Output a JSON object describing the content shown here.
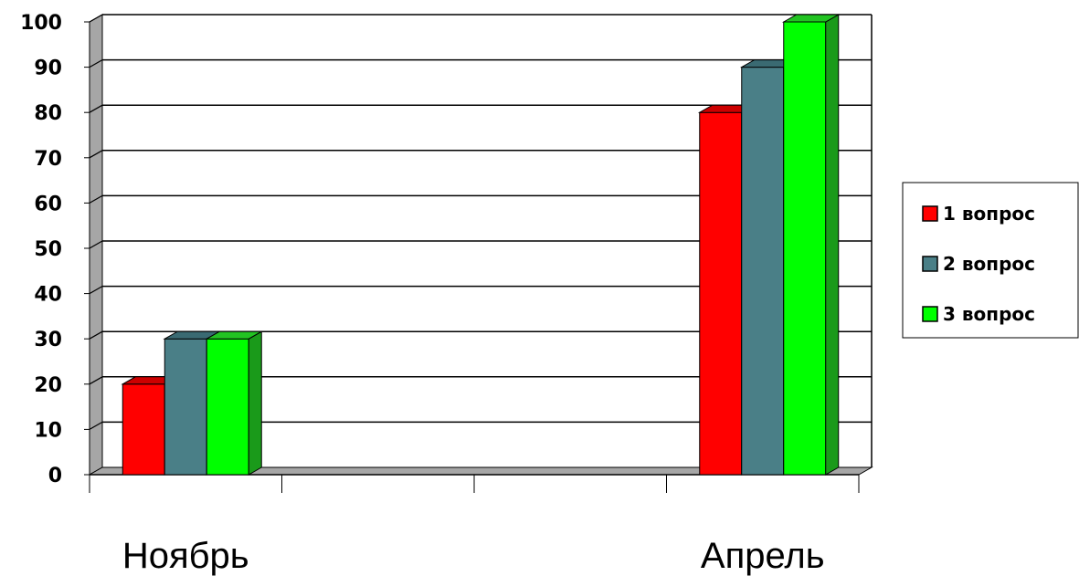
{
  "chart_data": {
    "type": "bar",
    "categories": [
      "Ноябрь",
      "",
      "",
      "Апрель"
    ],
    "series": [
      {
        "name": "1 вопрос",
        "values": [
          20,
          null,
          null,
          80
        ],
        "color": "#ff0000",
        "side_color": "#b30000",
        "top_color": "#cc0000"
      },
      {
        "name": "2 вопрос",
        "values": [
          30,
          null,
          null,
          90
        ],
        "color": "#4a7f87",
        "side_color": "#2f575d",
        "top_color": "#3a6a72"
      },
      {
        "name": "3 вопрос",
        "values": [
          30,
          null,
          null,
          100
        ],
        "color": "#00ff00",
        "side_color": "#1a9a1a",
        "top_color": "#22c322"
      }
    ],
    "yticks": [
      "0",
      "10",
      "20",
      "30",
      "40",
      "50",
      "60",
      "70",
      "80",
      "90",
      "100"
    ],
    "ylim": [
      0,
      100
    ],
    "title": "",
    "xlabel": "",
    "ylabel": "",
    "grid": true,
    "legend_position": "right",
    "chart_style": "3d-column"
  }
}
